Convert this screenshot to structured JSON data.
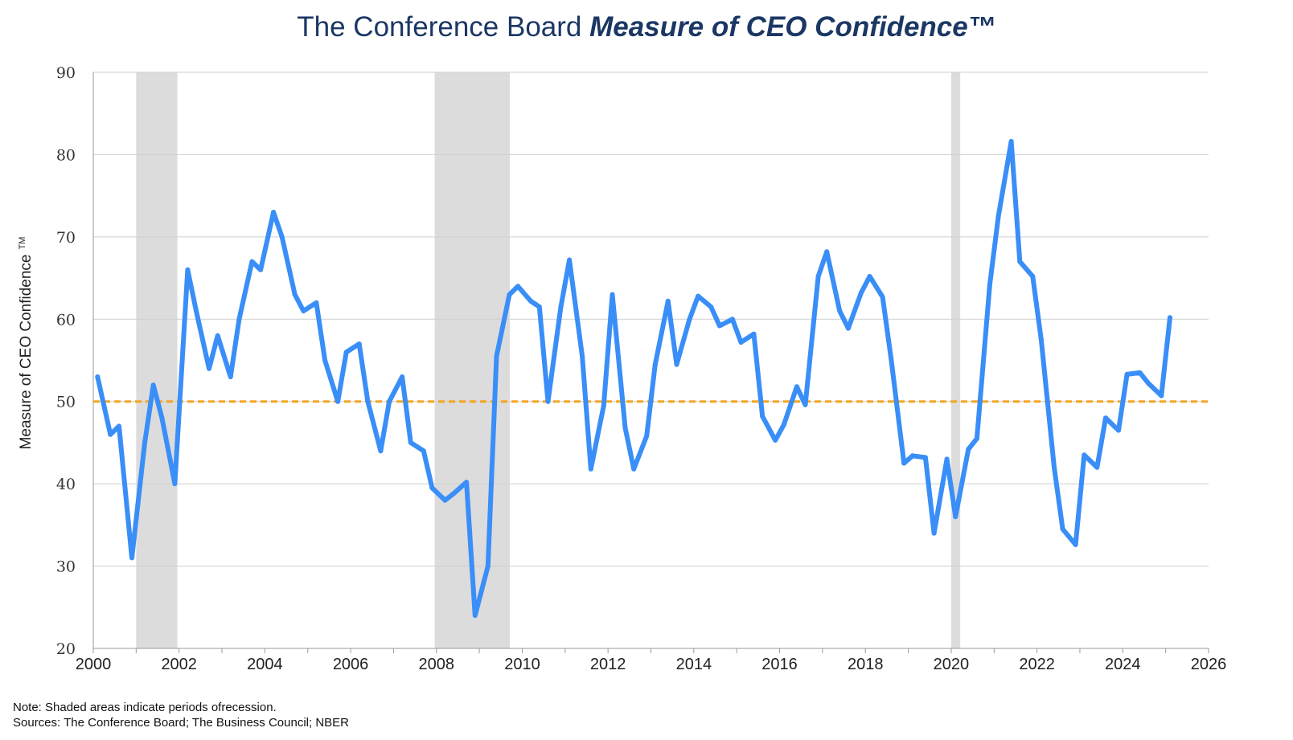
{
  "title": {
    "plain": "The Conference Board ",
    "emphasis": "Measure of CEO Confidence™"
  },
  "notes": {
    "line1": "Note: Shaded areas indicate periods ofrecession.",
    "line2": "Sources: The Conference Board; The Business Council; NBER"
  },
  "colors": {
    "line": "#3a8ef7",
    "reference": "#f5a623",
    "recession": "#dcdcdc",
    "grid": "#cfcfcf",
    "title": "#1b3764"
  },
  "chart_data": {
    "type": "line",
    "title": "The Conference Board Measure of CEO Confidence™",
    "xlabel": "",
    "ylabel": "Measure of CEO Confidence",
    "ylabel_mark": "TM",
    "xlim": [
      2000,
      2026
    ],
    "ylim": [
      20,
      90
    ],
    "xticks": [
      2000,
      2002,
      2004,
      2006,
      2008,
      2010,
      2012,
      2014,
      2016,
      2018,
      2020,
      2022,
      2024,
      2026
    ],
    "yticks": [
      20,
      30,
      40,
      50,
      60,
      70,
      80,
      90
    ],
    "grid": "horizontal",
    "reference_line": {
      "y": 50,
      "style": "dashed"
    },
    "recessions": [
      [
        2001.0,
        2001.96
      ],
      [
        2007.96,
        2009.71
      ],
      [
        2020.0,
        2020.21
      ]
    ],
    "series": [
      {
        "points": [
          [
            2000.1,
            53
          ],
          [
            2000.4,
            46
          ],
          [
            2000.6,
            47
          ],
          [
            2000.9,
            31
          ],
          [
            2001.2,
            45
          ],
          [
            2001.4,
            52
          ],
          [
            2001.6,
            48
          ],
          [
            2001.9,
            40
          ],
          [
            2002.2,
            66
          ],
          [
            2002.4,
            61
          ],
          [
            2002.7,
            54
          ],
          [
            2002.9,
            58
          ],
          [
            2003.2,
            53
          ],
          [
            2003.4,
            60
          ],
          [
            2003.7,
            67
          ],
          [
            2003.9,
            66
          ],
          [
            2004.2,
            73
          ],
          [
            2004.4,
            70
          ],
          [
            2004.7,
            63
          ],
          [
            2004.9,
            61
          ],
          [
            2005.2,
            62
          ],
          [
            2005.4,
            55
          ],
          [
            2005.7,
            50
          ],
          [
            2005.9,
            56
          ],
          [
            2006.2,
            57
          ],
          [
            2006.4,
            50
          ],
          [
            2006.7,
            44
          ],
          [
            2006.9,
            50
          ],
          [
            2007.2,
            53
          ],
          [
            2007.4,
            45
          ],
          [
            2007.7,
            44
          ],
          [
            2007.9,
            39.5
          ],
          [
            2008.2,
            38
          ],
          [
            2008.4,
            38.8
          ],
          [
            2008.7,
            40.2
          ],
          [
            2008.9,
            24
          ],
          [
            2009.2,
            30
          ],
          [
            2009.4,
            55.5
          ],
          [
            2009.7,
            63
          ],
          [
            2009.9,
            64
          ],
          [
            2010.2,
            62.2
          ],
          [
            2010.4,
            61.5
          ],
          [
            2010.6,
            50
          ],
          [
            2010.9,
            61.5
          ],
          [
            2011.1,
            67.2
          ],
          [
            2011.4,
            55.5
          ],
          [
            2011.6,
            41.8
          ],
          [
            2011.9,
            49.5
          ],
          [
            2012.1,
            63
          ],
          [
            2012.4,
            46.8
          ],
          [
            2012.6,
            41.8
          ],
          [
            2012.9,
            45.8
          ],
          [
            2013.1,
            54.5
          ],
          [
            2013.4,
            62.2
          ],
          [
            2013.6,
            54.5
          ],
          [
            2013.9,
            60
          ],
          [
            2014.1,
            62.8
          ],
          [
            2014.4,
            61.5
          ],
          [
            2014.6,
            59.2
          ],
          [
            2014.9,
            60
          ],
          [
            2015.1,
            57.2
          ],
          [
            2015.4,
            58.2
          ],
          [
            2015.6,
            48.2
          ],
          [
            2015.9,
            45.3
          ],
          [
            2016.1,
            47.2
          ],
          [
            2016.4,
            51.8
          ],
          [
            2016.6,
            49.6
          ],
          [
            2016.9,
            65.2
          ],
          [
            2017.1,
            68.2
          ],
          [
            2017.4,
            61
          ],
          [
            2017.6,
            58.9
          ],
          [
            2017.9,
            63.2
          ],
          [
            2018.1,
            65.2
          ],
          [
            2018.4,
            62.7
          ],
          [
            2018.6,
            55.2
          ],
          [
            2018.9,
            42.5
          ],
          [
            2019.1,
            43.4
          ],
          [
            2019.4,
            43.2
          ],
          [
            2019.6,
            34
          ],
          [
            2019.9,
            43
          ],
          [
            2020.1,
            36
          ],
          [
            2020.4,
            44.2
          ],
          [
            2020.6,
            45.5
          ],
          [
            2020.9,
            64.2
          ],
          [
            2021.1,
            72.5
          ],
          [
            2021.4,
            81.6
          ],
          [
            2021.6,
            67
          ],
          [
            2021.9,
            65.2
          ],
          [
            2022.1,
            57.5
          ],
          [
            2022.4,
            42
          ],
          [
            2022.6,
            34.5
          ],
          [
            2022.9,
            32.6
          ],
          [
            2023.1,
            43.5
          ],
          [
            2023.4,
            42
          ],
          [
            2023.6,
            48
          ],
          [
            2023.9,
            46.5
          ],
          [
            2024.1,
            53.3
          ],
          [
            2024.4,
            53.5
          ],
          [
            2024.6,
            52.2
          ],
          [
            2024.9,
            50.7
          ],
          [
            2025.1,
            60.2
          ]
        ]
      }
    ]
  }
}
